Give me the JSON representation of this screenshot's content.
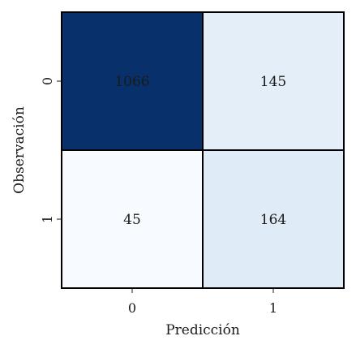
{
  "chart_data": {
    "type": "heatmap",
    "title": "",
    "xlabel": "Predicción",
    "ylabel": "Observación",
    "x_categories": [
      "0",
      "1"
    ],
    "y_categories": [
      "0",
      "1"
    ],
    "values": [
      [
        1066,
        145
      ],
      [
        45,
        164
      ]
    ],
    "colormap": "Blues",
    "vmin": 45,
    "vmax": 1066,
    "colorbar": false,
    "grid": false
  },
  "colors": {
    "low": "#f7fbff",
    "mid": "#c6dbef",
    "high": "#08306b",
    "text_dark": "#1a1a1a",
    "text_light": "#ffffff",
    "cell_border": "#000000"
  }
}
